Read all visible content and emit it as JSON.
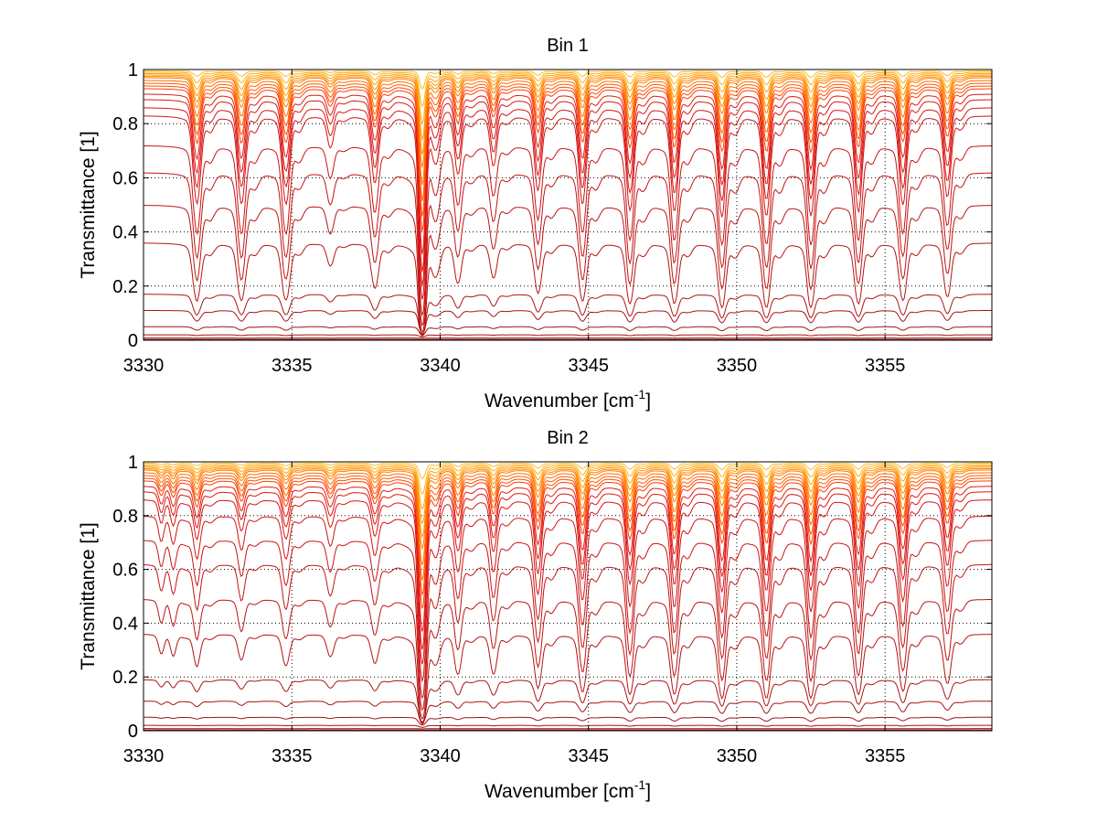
{
  "chart_data": [
    {
      "type": "line",
      "title": "Bin 1",
      "xlabel": "Wavenumber [cm",
      "xlabel_sup": "-1",
      "xlabel_end": "]",
      "ylabel": "Transmittance [1]",
      "xlim": [
        3330,
        3358.6
      ],
      "ylim": [
        0,
        1
      ],
      "xticks": [
        3330,
        3335,
        3340,
        3345,
        3350,
        3355
      ],
      "yticks": [
        0,
        0.2,
        0.4,
        0.6,
        0.8,
        1
      ],
      "xtick_labels": [
        "3330",
        "3335",
        "3340",
        "3345",
        "3350",
        "3355"
      ],
      "ytick_labels": [
        "0",
        "0.2",
        "0.4",
        "0.6",
        "0.8",
        "1"
      ],
      "grid": true,
      "lines": [
        {
          "x": 3331.8,
          "s": 1.0,
          "w": 0.16
        },
        {
          "x": 3333.3,
          "s": 1.0,
          "w": 0.16
        },
        {
          "x": 3334.8,
          "s": 1.0,
          "w": 0.16
        },
        {
          "x": 3336.3,
          "s": 0.3,
          "w": 0.15
        },
        {
          "x": 3337.8,
          "s": 0.7,
          "w": 0.15
        },
        {
          "x": 3339.4,
          "s": 3.5,
          "w": 0.12
        },
        {
          "x": 3340.6,
          "s": 0.6,
          "w": 0.14
        },
        {
          "x": 3341.8,
          "s": 0.5,
          "w": 0.14
        },
        {
          "x": 3343.3,
          "s": 0.8,
          "w": 0.15
        },
        {
          "x": 3344.8,
          "s": 1.0,
          "w": 0.15
        },
        {
          "x": 3346.4,
          "s": 1.1,
          "w": 0.15
        },
        {
          "x": 3347.9,
          "s": 1.1,
          "w": 0.15
        },
        {
          "x": 3349.5,
          "s": 1.2,
          "w": 0.15
        },
        {
          "x": 3351.0,
          "s": 1.2,
          "w": 0.15
        },
        {
          "x": 3352.5,
          "s": 1.2,
          "w": 0.15
        },
        {
          "x": 3354.1,
          "s": 1.1,
          "w": 0.15
        },
        {
          "x": 3355.6,
          "s": 1.0,
          "w": 0.15
        },
        {
          "x": 3357.1,
          "s": 0.9,
          "w": 0.15
        }
      ],
      "series_continuum": [
        0.995,
        0.99,
        0.985,
        0.98,
        0.975,
        0.97,
        0.96,
        0.95,
        0.94,
        0.93,
        0.91,
        0.89,
        0.86,
        0.83,
        0.72,
        0.62,
        0.5,
        0.36,
        0.17,
        0.11,
        0.05,
        0.02,
        0.008,
        0.003
      ],
      "series_depth": [
        0.02,
        0.04,
        0.06,
        0.08,
        0.1,
        0.12,
        0.15,
        0.18,
        0.21,
        0.24,
        0.3,
        0.36,
        0.42,
        0.5,
        0.6,
        0.7,
        0.8,
        0.9,
        0.6,
        0.45,
        0.3,
        0.15,
        0.05,
        0.02
      ]
    },
    {
      "type": "line",
      "title": "Bin 2",
      "xlabel": "Wavenumber [cm",
      "xlabel_sup": "-1",
      "xlabel_end": "]",
      "ylabel": "Transmittance [1]",
      "xlim": [
        3330,
        3358.6
      ],
      "ylim": [
        0,
        1
      ],
      "xticks": [
        3330,
        3335,
        3340,
        3345,
        3350,
        3355
      ],
      "yticks": [
        0,
        0.2,
        0.4,
        0.6,
        0.8,
        1
      ],
      "xtick_labels": [
        "3330",
        "3335",
        "3340",
        "3345",
        "3350",
        "3355"
      ],
      "ytick_labels": [
        "0",
        "0.2",
        "0.4",
        "0.6",
        "0.8",
        "1"
      ],
      "grid": true,
      "lines": [
        {
          "x": 3330.6,
          "s": 0.25,
          "w": 0.12
        },
        {
          "x": 3331.0,
          "s": 0.25,
          "w": 0.12
        },
        {
          "x": 3331.8,
          "s": 0.45,
          "w": 0.14
        },
        {
          "x": 3333.3,
          "s": 0.35,
          "w": 0.14
        },
        {
          "x": 3334.8,
          "s": 0.45,
          "w": 0.15
        },
        {
          "x": 3336.3,
          "s": 0.3,
          "w": 0.15
        },
        {
          "x": 3337.8,
          "s": 0.4,
          "w": 0.15
        },
        {
          "x": 3339.4,
          "s": 3.0,
          "w": 0.14
        },
        {
          "x": 3340.6,
          "s": 0.6,
          "w": 0.14
        },
        {
          "x": 3341.8,
          "s": 0.6,
          "w": 0.14
        },
        {
          "x": 3343.3,
          "s": 0.9,
          "w": 0.15
        },
        {
          "x": 3344.8,
          "s": 1.0,
          "w": 0.15
        },
        {
          "x": 3346.4,
          "s": 1.1,
          "w": 0.15
        },
        {
          "x": 3347.9,
          "s": 1.1,
          "w": 0.15
        },
        {
          "x": 3349.5,
          "s": 1.2,
          "w": 0.15
        },
        {
          "x": 3351.0,
          "s": 1.2,
          "w": 0.15
        },
        {
          "x": 3352.5,
          "s": 1.2,
          "w": 0.15
        },
        {
          "x": 3354.1,
          "s": 1.1,
          "w": 0.15
        },
        {
          "x": 3355.6,
          "s": 1.0,
          "w": 0.15
        },
        {
          "x": 3357.1,
          "s": 0.8,
          "w": 0.15
        }
      ],
      "series_continuum": [
        0.995,
        0.99,
        0.985,
        0.98,
        0.975,
        0.97,
        0.96,
        0.95,
        0.94,
        0.93,
        0.91,
        0.89,
        0.86,
        0.8,
        0.71,
        0.62,
        0.49,
        0.36,
        0.19,
        0.11,
        0.05,
        0.02,
        0.008,
        0.003
      ],
      "series_depth": [
        0.02,
        0.04,
        0.06,
        0.08,
        0.1,
        0.12,
        0.15,
        0.18,
        0.21,
        0.24,
        0.3,
        0.36,
        0.42,
        0.5,
        0.6,
        0.7,
        0.8,
        0.9,
        0.6,
        0.45,
        0.3,
        0.15,
        0.05,
        0.02
      ]
    }
  ]
}
